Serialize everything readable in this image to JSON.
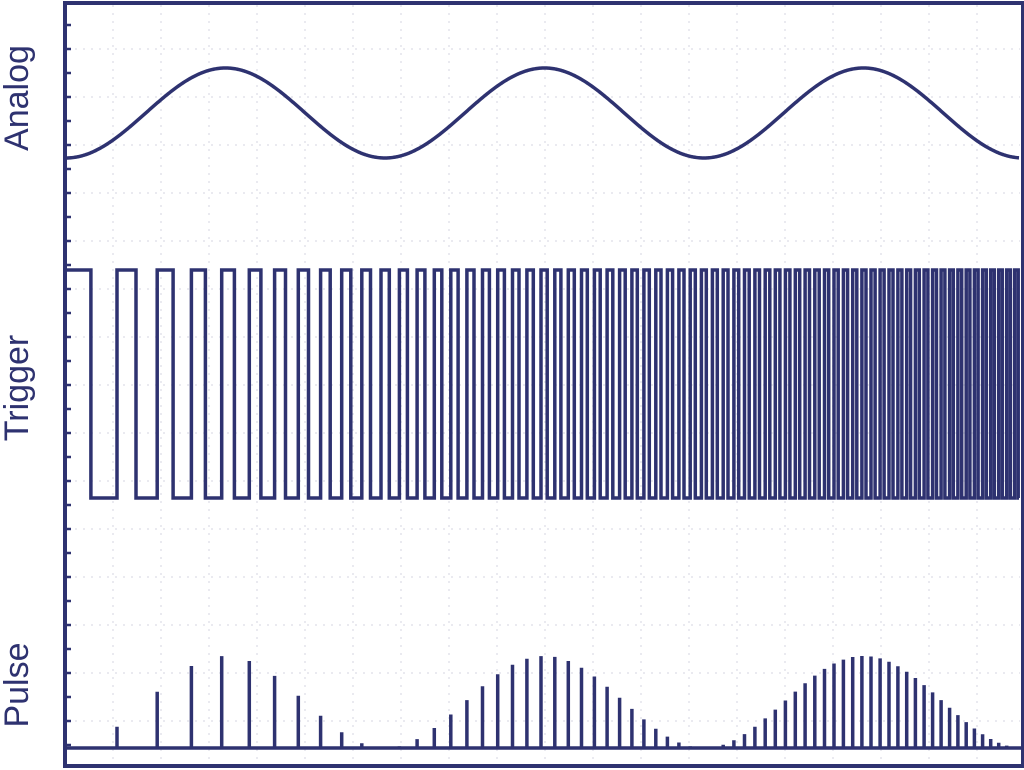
{
  "labels": {
    "analog": "Analog",
    "trigger": "Trigger",
    "pulse": "Pulse"
  }
}
